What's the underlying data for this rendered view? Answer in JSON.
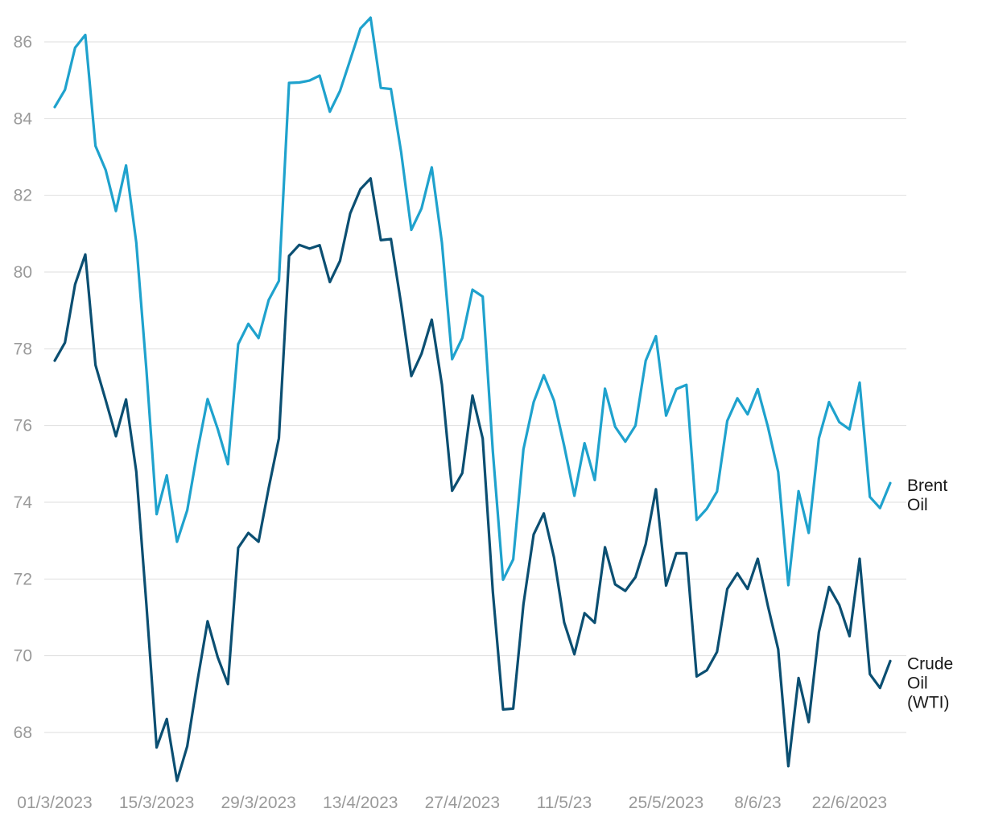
{
  "chart_data": {
    "type": "line",
    "title": "",
    "xlabel": "",
    "ylabel": "",
    "ylim": [
      66.6,
      86.8
    ],
    "yticks": [
      68,
      70,
      72,
      74,
      76,
      78,
      80,
      82,
      84,
      86
    ],
    "grid": "horizontal",
    "legend": "inline-right",
    "x_tick_labels": [
      "01/3/2023",
      "15/3/2023",
      "29/3/2023",
      "13/4/2023",
      "27/4/2023",
      "11/5/23",
      "25/5/2023",
      "8/6/23",
      "22/6/2023"
    ],
    "x": [
      "2023-03-01",
      "2023-03-02",
      "2023-03-03",
      "2023-03-06",
      "2023-03-07",
      "2023-03-08",
      "2023-03-09",
      "2023-03-10",
      "2023-03-13",
      "2023-03-14",
      "2023-03-15",
      "2023-03-16",
      "2023-03-17",
      "2023-03-20",
      "2023-03-21",
      "2023-03-22",
      "2023-03-23",
      "2023-03-24",
      "2023-03-27",
      "2023-03-28",
      "2023-03-29",
      "2023-03-30",
      "2023-03-31",
      "2023-04-03",
      "2023-04-04",
      "2023-04-05",
      "2023-04-06",
      "2023-04-10",
      "2023-04-11",
      "2023-04-12",
      "2023-04-13",
      "2023-04-14",
      "2023-04-17",
      "2023-04-18",
      "2023-04-19",
      "2023-04-20",
      "2023-04-21",
      "2023-04-24",
      "2023-04-25",
      "2023-04-26",
      "2023-04-27",
      "2023-04-28",
      "2023-05-01",
      "2023-05-02",
      "2023-05-03",
      "2023-05-04",
      "2023-05-05",
      "2023-05-08",
      "2023-05-09",
      "2023-05-10",
      "2023-05-11",
      "2023-05-12",
      "2023-05-15",
      "2023-05-16",
      "2023-05-17",
      "2023-05-18",
      "2023-05-19",
      "2023-05-22",
      "2023-05-23",
      "2023-05-24",
      "2023-05-25",
      "2023-05-26",
      "2023-05-30",
      "2023-05-31",
      "2023-06-01",
      "2023-06-02",
      "2023-06-05",
      "2023-06-06",
      "2023-06-07",
      "2023-06-08",
      "2023-06-09",
      "2023-06-12",
      "2023-06-13",
      "2023-06-14",
      "2023-06-15",
      "2023-06-16",
      "2023-06-20",
      "2023-06-21",
      "2023-06-22",
      "2023-06-23",
      "2023-06-26",
      "2023-06-27",
      "2023-06-28"
    ],
    "series": [
      {
        "name": "Brent Oil",
        "label_lines": [
          "Brent",
          "Oil"
        ],
        "color": "#1fa2cd",
        "values": [
          84.3,
          84.75,
          85.85,
          86.18,
          83.29,
          82.66,
          81.59,
          82.78,
          80.77,
          77.45,
          73.69,
          74.7,
          72.97,
          73.79,
          75.32,
          76.69,
          75.91,
          74.99,
          78.12,
          78.65,
          78.28,
          79.27,
          79.77,
          84.93,
          84.94,
          84.99,
          85.12,
          84.18,
          84.72,
          85.53,
          86.35,
          86.63,
          84.8,
          84.77,
          83.12,
          81.1,
          81.66,
          82.73,
          80.77,
          77.73,
          78.28,
          79.54,
          79.36,
          75.32,
          71.98,
          72.51,
          75.38,
          76.61,
          77.31,
          76.65,
          75.47,
          74.17,
          75.54,
          74.58,
          76.96,
          75.97,
          75.58,
          76.0,
          77.69,
          78.33,
          76.26,
          76.95,
          77.06,
          73.54,
          73.83,
          74.28,
          76.12,
          76.71,
          76.29,
          76.95,
          75.96,
          74.79,
          71.84,
          74.29,
          73.2,
          75.67,
          76.61,
          76.09,
          75.9,
          77.12,
          74.14,
          73.85,
          74.5
        ]
      },
      {
        "name": "Crude Oil (WTI)",
        "label_lines": [
          "Crude",
          "Oil",
          "(WTI)"
        ],
        "color": "#0b4f72",
        "values": [
          77.69,
          78.16,
          79.68,
          80.46,
          77.58,
          76.66,
          75.72,
          76.68,
          74.8,
          71.33,
          67.61,
          68.35,
          66.74,
          67.64,
          69.33,
          70.9,
          69.96,
          69.26,
          72.81,
          73.2,
          72.97,
          74.37,
          75.67,
          80.42,
          80.71,
          80.61,
          80.7,
          79.74,
          80.29,
          81.53,
          82.16,
          82.44,
          80.83,
          80.86,
          79.16,
          77.29,
          77.87,
          78.76,
          77.07,
          74.3,
          74.76,
          76.78,
          75.66,
          71.66,
          68.6,
          68.62,
          71.34,
          73.16,
          73.71,
          72.56,
          70.87,
          70.04,
          71.11,
          70.86,
          72.83,
          71.86,
          71.69,
          72.05,
          72.91,
          74.34,
          71.83,
          72.67,
          72.67,
          69.46,
          69.62,
          70.1,
          71.74,
          72.15,
          71.74,
          72.53,
          71.29,
          70.17,
          67.12,
          69.42,
          68.27,
          70.62,
          71.79,
          71.32,
          70.51,
          72.53,
          69.52,
          69.16,
          69.86
        ]
      }
    ]
  }
}
